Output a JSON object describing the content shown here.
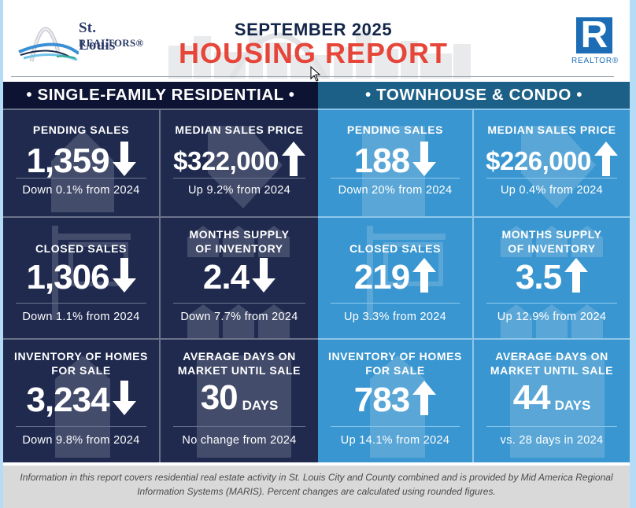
{
  "header": {
    "org_logo_line1": "St. Louis",
    "org_logo_line2": "REALTORS®",
    "month": "SEPTEMBER 2025",
    "title": "HOUSING REPORT",
    "realtor_logo_letter": "R",
    "realtor_logo_word": "REALTOR®"
  },
  "sections": [
    {
      "title": "• SINGLE-FAMILY RESIDENTIAL •",
      "theme": {
        "panel": "#1f2a4e",
        "header": "#0d1433"
      },
      "stats": [
        {
          "label_line1": "PENDING SALES",
          "label_line2": "",
          "value": "1,359",
          "units": "",
          "direction": "down",
          "change": "Down 0.1% from 2024",
          "icon": "house-icon"
        },
        {
          "label_line1": "MEDIAN SALES PRICE",
          "label_line2": "",
          "value": "$322,000",
          "units": "",
          "direction": "up",
          "change": "Up 9.2% from 2024",
          "icon": "price-tag-icon"
        },
        {
          "label_line1": "CLOSED SALES",
          "label_line2": "",
          "value": "1,306",
          "units": "",
          "direction": "down",
          "change": "Down 1.1% from 2024",
          "icon": "sold-sign-icon"
        },
        {
          "label_line1": "MONTHS SUPPLY",
          "label_line2": "OF INVENTORY",
          "value": "2.4",
          "units": "",
          "direction": "down",
          "change": "Down 7.7% from 2024",
          "icon": "houses-grid-icon"
        },
        {
          "label_line1": "INVENTORY OF HOMES",
          "label_line2": "FOR SALE",
          "value": "3,234",
          "units": "",
          "direction": "down",
          "change": "Down 9.8% from 2024",
          "icon": "house-key-icon"
        },
        {
          "label_line1": "AVERAGE DAYS ON",
          "label_line2": "MARKET UNTIL SALE",
          "value": "30",
          "units": "DAYS",
          "direction": "none",
          "change": "No change from 2024",
          "icon": "calendar-icon"
        }
      ]
    },
    {
      "title": "• TOWNHOUSE & CONDO •",
      "theme": {
        "panel": "#3a96d0",
        "header": "#1c5f87"
      },
      "stats": [
        {
          "label_line1": "PENDING SALES",
          "label_line2": "",
          "value": "188",
          "units": "",
          "direction": "down",
          "change": "Down 20% from 2024",
          "icon": "building-icon"
        },
        {
          "label_line1": "MEDIAN SALES PRICE",
          "label_line2": "",
          "value": "$226,000",
          "units": "",
          "direction": "up",
          "change": "Up 0.4% from 2024",
          "icon": "price-tag-icon"
        },
        {
          "label_line1": "CLOSED SALES",
          "label_line2": "",
          "value": "219",
          "units": "",
          "direction": "up",
          "change": "Up 3.3% from 2024",
          "icon": "sold-sign-icon"
        },
        {
          "label_line1": "MONTHS SUPPLY",
          "label_line2": "OF INVENTORY",
          "value": "3.5",
          "units": "",
          "direction": "up",
          "change": "Up 12.9% from 2024",
          "icon": "houses-grid-icon"
        },
        {
          "label_line1": "INVENTORY OF HOMES",
          "label_line2": "FOR SALE",
          "value": "783",
          "units": "",
          "direction": "up",
          "change": "Up 14.1% from 2024",
          "icon": "house-key-icon"
        },
        {
          "label_line1": "AVERAGE DAYS ON",
          "label_line2": "MARKET UNTIL SALE",
          "value": "44",
          "units": "DAYS",
          "direction": "none",
          "change": "vs. 28 days in 2024",
          "icon": "calendar-icon"
        }
      ]
    }
  ],
  "footer": {
    "text": "Information in this report covers residential real estate activity in St. Louis City and County combined and is provided by Mid America Regional Information Systems (MARIS). Percent changes are calculated using rounded figures."
  },
  "colors": {
    "title_red": "#e6463a",
    "title_navy": "#14264a",
    "realtor_blue": "#1c6db5",
    "footer_bg": "#d9d9d9"
  }
}
